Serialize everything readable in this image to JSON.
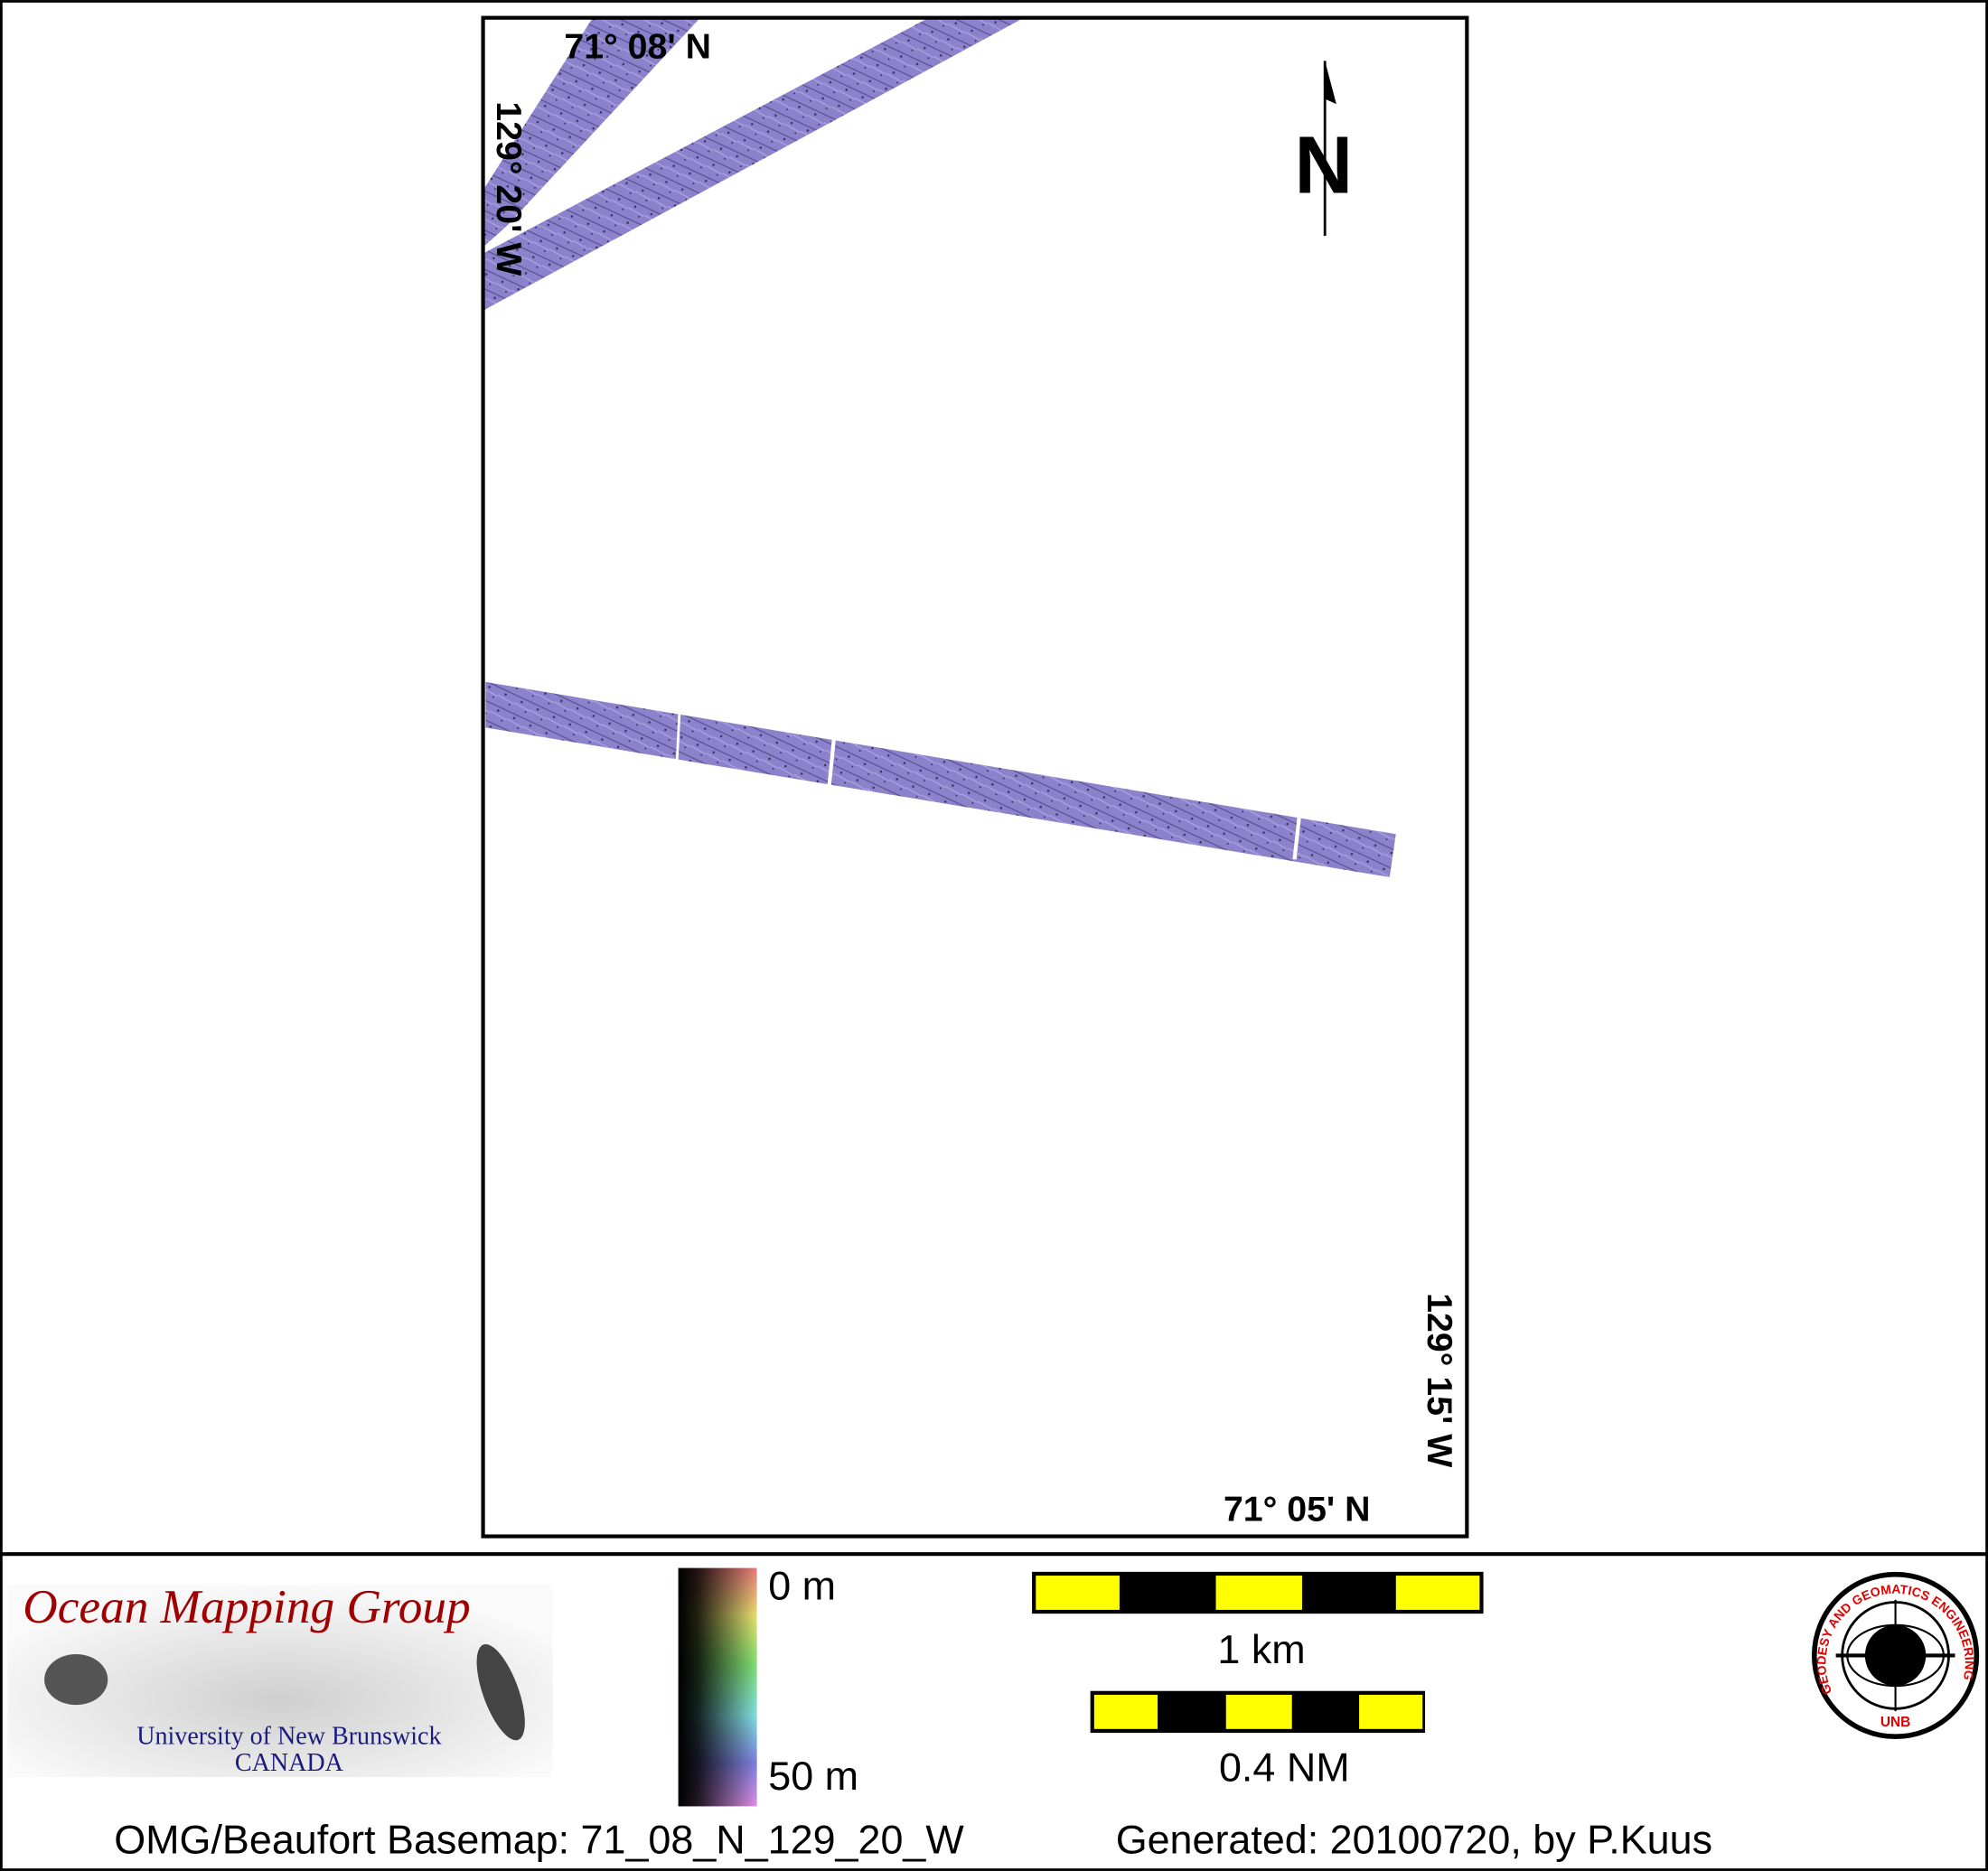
{
  "map": {
    "graticule_labels": {
      "top_left_lat": "71° 08' N",
      "top_left_lon": "129° 20' W",
      "bottom_right_lat": "71° 05' N",
      "bottom_right_lon": "129° 15' W"
    },
    "north_arrow": {
      "icon": "north-arrow-icon",
      "label": "N"
    },
    "swath_color": "#8a7fc8"
  },
  "legend": {
    "logo": {
      "title": "Ocean Mapping Group",
      "university": "University of New Brunswick",
      "country": "CANADA",
      "title_color": "#a00000",
      "university_color": "#1a1a80"
    },
    "depth_colorbar": {
      "top_label": "0 m",
      "bottom_label": "50 m"
    },
    "scale_bars": [
      {
        "label": "1 km",
        "segments": 5
      },
      {
        "label": "0.4 NM",
        "segments": 5
      }
    ],
    "unb_seal": {
      "ring_text": "GEODESY AND GEOMATICS ENGINEERING",
      "bottom_text": "UNB",
      "color": "#e00000"
    }
  },
  "footer": {
    "basemap": "OMG/Beaufort Basemap: 71_08_N_129_20_W",
    "generated": "Generated: 20100720, by P.Kuus"
  }
}
